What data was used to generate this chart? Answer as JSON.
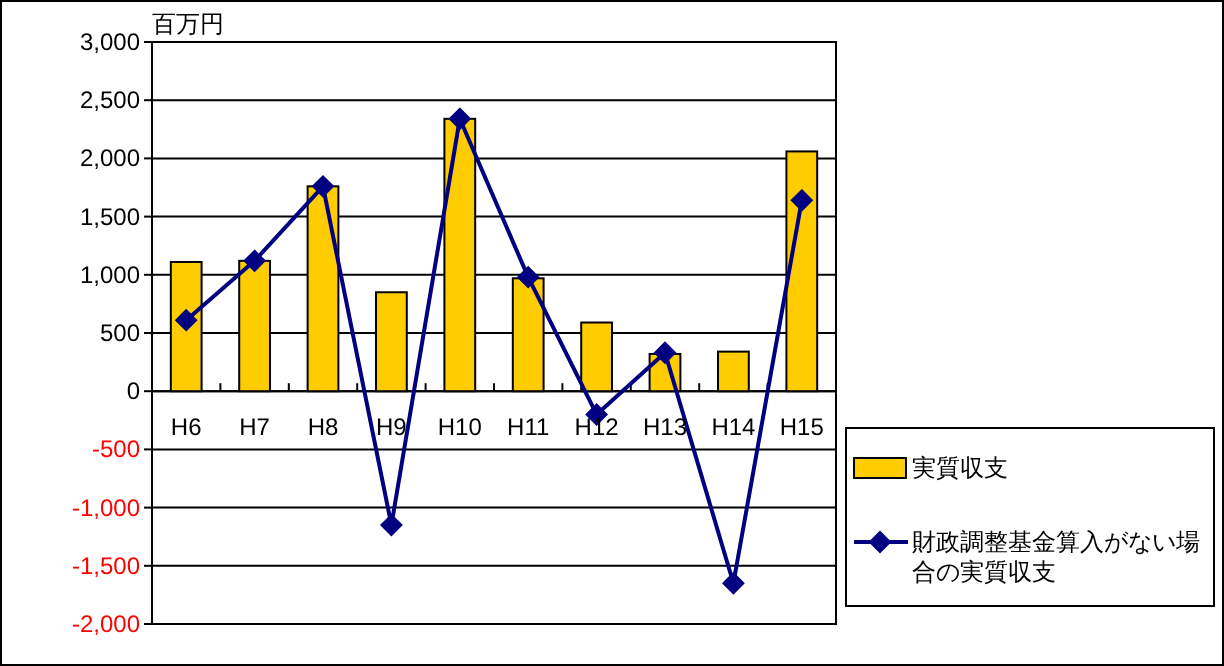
{
  "chart_data": {
    "type": "bar",
    "ylabel": "百万円",
    "categories": [
      "H6",
      "H7",
      "H8",
      "H9",
      "H10",
      "H11",
      "H12",
      "H13",
      "H14",
      "H15"
    ],
    "series": [
      {
        "name": "実質収支",
        "color": "#ffcc00",
        "values": [
          1110,
          1120,
          1760,
          850,
          2340,
          970,
          590,
          320,
          340,
          2060
        ]
      },
      {
        "name": "財政調整基金算入がない場合の実質収支",
        "type": "line",
        "color": "#000080",
        "marker": "diamond",
        "values": [
          610,
          1120,
          1760,
          -1150,
          2340,
          980,
          -200,
          330,
          -1650,
          1640
        ]
      }
    ],
    "ylim": [
      -2000,
      3000
    ],
    "yticks": [
      {
        "value": -2000,
        "label": "-2,000"
      },
      {
        "value": -1500,
        "label": "-1,500"
      },
      {
        "value": -1000,
        "label": "-1,000"
      },
      {
        "value": -500,
        "label": "-500"
      },
      {
        "value": 0,
        "label": "0"
      },
      {
        "value": 500,
        "label": "500"
      },
      {
        "value": 1000,
        "label": "1,000"
      },
      {
        "value": 1500,
        "label": "1,500"
      },
      {
        "value": 2000,
        "label": "2,000"
      },
      {
        "value": 2500,
        "label": "2,500"
      },
      {
        "value": 3000,
        "label": "3,000"
      }
    ],
    "grid": "y",
    "legend": "bottom right"
  }
}
